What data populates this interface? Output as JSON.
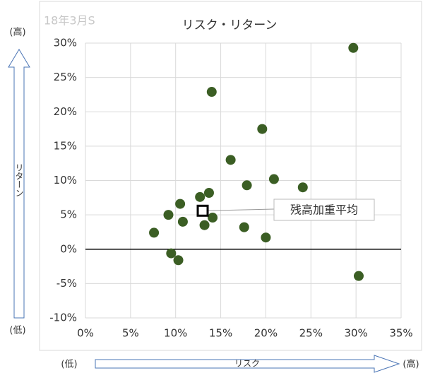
{
  "chart_data": {
    "type": "scatter",
    "title": "リスク・リターン",
    "subtitle": "18年3月S",
    "x_label": "リスク",
    "y_label": "リターン",
    "x_low": "(低)",
    "x_high": "(高)",
    "y_low": "(低)",
    "y_high": "(高)",
    "series": [
      {
        "color": "#3b5e24",
        "x": [
          29.7,
          14.0,
          19.6,
          16.1,
          20.9,
          24.1,
          17.9,
          13.7,
          12.7,
          10.5,
          9.2,
          10.8,
          13.2,
          14.1,
          17.6,
          20.0,
          7.6,
          9.5,
          10.3,
          30.3
        ],
        "values": [
          29.3,
          22.9,
          17.5,
          13.0,
          10.2,
          9.0,
          9.3,
          8.2,
          7.6,
          6.6,
          5.0,
          4.0,
          3.5,
          4.6,
          3.2,
          1.7,
          2.4,
          -0.6,
          -1.6,
          -3.9
        ]
      }
    ],
    "annotation": {
      "label": "残高加重平均",
      "x": 13.0,
      "y": 5.6
    },
    "xlim": [
      0,
      35
    ],
    "xticks": [
      {
        "value": 0,
        "label": "0%"
      },
      {
        "value": 5,
        "label": "5%"
      },
      {
        "value": 10,
        "label": "10%"
      },
      {
        "value": 15,
        "label": "15%"
      },
      {
        "value": 20,
        "label": "20%"
      },
      {
        "value": 25,
        "label": "25%"
      },
      {
        "value": 30,
        "label": "30%"
      },
      {
        "value": 35,
        "label": "35%"
      }
    ],
    "ylim": [
      -10,
      30
    ],
    "yticks": [
      {
        "value": -10,
        "label": "-10%"
      },
      {
        "value": -5,
        "label": "-5%"
      },
      {
        "value": 0,
        "label": "0%"
      },
      {
        "value": 5,
        "label": "5%"
      },
      {
        "value": 10,
        "label": "10%"
      },
      {
        "value": 15,
        "label": "15%"
      },
      {
        "value": 20,
        "label": "20%"
      },
      {
        "value": 25,
        "label": "25%"
      },
      {
        "value": 30,
        "label": "30%"
      }
    ],
    "grid": true
  }
}
